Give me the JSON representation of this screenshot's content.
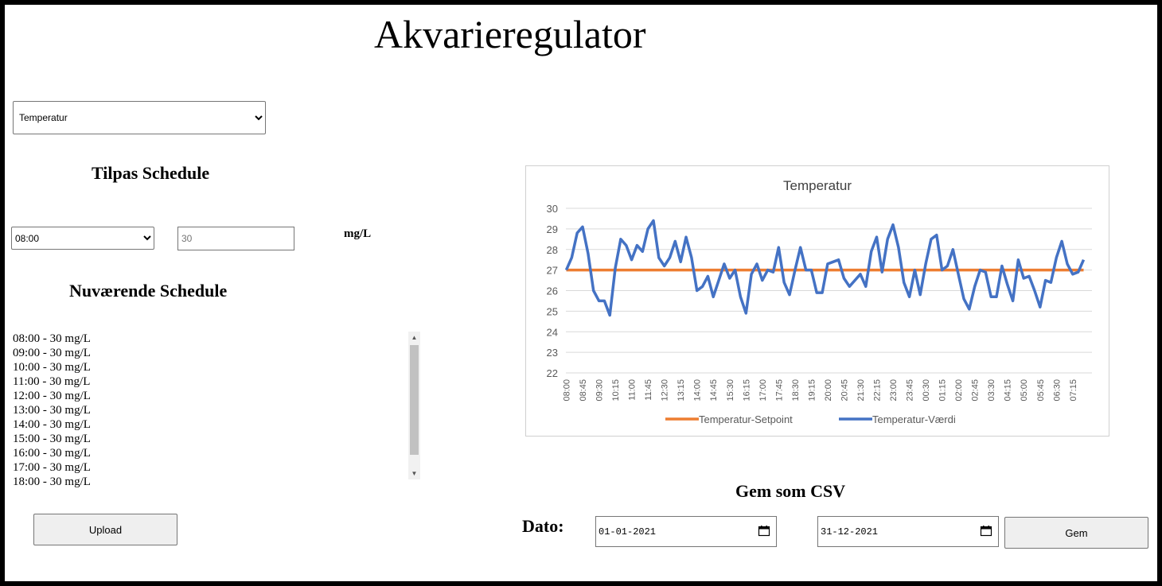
{
  "app": {
    "title": "Akvarieregulator"
  },
  "mode_select": {
    "selected": "Temperatur"
  },
  "schedule_editor": {
    "heading": "Tilpas Schedule",
    "time_selected": "08:00",
    "value_placeholder": "30",
    "unit": "mg/L"
  },
  "current_schedule": {
    "heading": "Nuværende Schedule",
    "items": [
      "08:00 - 30 mg/L",
      "09:00 - 30 mg/L",
      "10:00 - 30 mg/L",
      "11:00 - 30 mg/L",
      "12:00 - 30 mg/L",
      "13:00 - 30 mg/L",
      "14:00 - 30 mg/L",
      "15:00 - 30 mg/L",
      "16:00 - 30 mg/L",
      "17:00 - 30 mg/L",
      "18:00 - 30 mg/L"
    ]
  },
  "upload_button": {
    "label": "Upload"
  },
  "csv": {
    "heading": "Gem som CSV",
    "date_label": "Dato:",
    "from_date": "01-01-2021",
    "to_date": "31-12-2021",
    "save_label": "Gem"
  },
  "chart_data": {
    "type": "line",
    "title": "Temperatur",
    "ylim": [
      22,
      30
    ],
    "yticks": [
      22,
      23,
      24,
      25,
      26,
      27,
      28,
      29,
      30
    ],
    "grid": true,
    "legend_position": "bottom",
    "x_tick_labels": [
      "08:00",
      "08:45",
      "09:30",
      "10:15",
      "11:00",
      "11:45",
      "12:30",
      "13:15",
      "14:00",
      "14:45",
      "15:30",
      "16:15",
      "17:00",
      "17:45",
      "18:30",
      "19:15",
      "20:00",
      "20:45",
      "21:30",
      "22:15",
      "23:00",
      "23:45",
      "00:30",
      "01:15",
      "02:00",
      "02:45",
      "03:30",
      "04:15",
      "05:00",
      "05:45",
      "06:30",
      "07:15"
    ],
    "series": [
      {
        "name": "Temperatur-Setpoint",
        "color": "#ed7d31",
        "values": [
          27,
          27,
          27,
          27,
          27,
          27,
          27,
          27,
          27,
          27,
          27,
          27,
          27,
          27,
          27,
          27,
          27,
          27,
          27,
          27,
          27,
          27,
          27,
          27,
          27,
          27,
          27,
          27,
          27,
          27,
          27,
          27,
          27,
          27,
          27,
          27,
          27,
          27,
          27,
          27,
          27,
          27,
          27,
          27,
          27,
          27,
          27,
          27,
          27,
          27,
          27,
          27,
          27,
          27,
          27,
          27,
          27,
          27,
          27,
          27,
          27,
          27,
          27,
          27,
          27,
          27,
          27,
          27,
          27,
          27,
          27,
          27,
          27,
          27,
          27,
          27,
          27,
          27,
          27,
          27,
          27,
          27,
          27,
          27,
          27,
          27,
          27,
          27,
          27,
          27,
          27,
          27,
          27,
          27,
          27,
          27
        ]
      },
      {
        "name": "Temperatur-Værdi",
        "color": "#4472c4",
        "values": [
          27.0,
          27.6,
          28.8,
          29.1,
          27.8,
          26.0,
          25.5,
          25.5,
          24.8,
          27.1,
          28.5,
          28.2,
          27.5,
          28.2,
          27.9,
          29.0,
          29.4,
          27.6,
          27.2,
          27.6,
          28.4,
          27.4,
          28.6,
          27.6,
          26.0,
          26.2,
          26.7,
          25.7,
          26.5,
          27.3,
          26.6,
          27.0,
          25.7,
          24.9,
          26.8,
          27.3,
          26.5,
          27.0,
          26.9,
          28.1,
          26.4,
          25.8,
          27.0,
          28.1,
          27.0,
          27.0,
          25.9,
          25.9,
          27.3,
          27.4,
          27.5,
          26.6,
          26.2,
          26.5,
          26.8,
          26.2,
          27.9,
          28.6,
          26.9,
          28.5,
          29.2,
          28.1,
          26.4,
          25.7,
          27.0,
          25.8,
          27.3,
          28.5,
          28.7,
          27.0,
          27.2,
          28.0,
          26.8,
          25.6,
          25.1,
          26.2,
          27.0,
          26.9,
          25.7,
          25.7,
          27.2,
          26.3,
          25.5,
          27.5,
          26.6,
          26.7,
          26.0,
          25.2,
          26.5,
          26.4,
          27.6,
          28.4,
          27.3,
          26.8,
          26.9,
          27.5
        ]
      }
    ]
  }
}
